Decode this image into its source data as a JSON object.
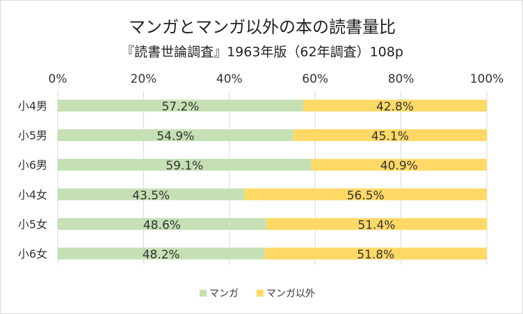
{
  "chart_data": {
    "type": "bar",
    "orientation": "horizontal",
    "stacked": "percent",
    "title": "マンガとマンガ以外の本の読書量比",
    "subtitle": "『読書世論調査』1963年版（62年調査）108p",
    "categories": [
      "小4男",
      "小5男",
      "小6男",
      "小4女",
      "小5女",
      "小6女"
    ],
    "series": [
      {
        "name": "マンガ",
        "color": "#c5e0b4",
        "values": [
          57.2,
          54.9,
          59.1,
          43.5,
          48.6,
          48.2
        ],
        "labels": [
          "57.2%",
          "54.9%",
          "59.1%",
          "43.5%",
          "48.6%",
          "48.2%"
        ]
      },
      {
        "name": "マンガ以外",
        "color": "#ffd966",
        "values": [
          42.8,
          45.1,
          40.9,
          56.5,
          51.4,
          51.8
        ],
        "labels": [
          "42.8%",
          "45.1%",
          "40.9%",
          "56.5%",
          "51.4%",
          "51.8%"
        ]
      }
    ],
    "xlim": [
      0,
      100
    ],
    "xticks": [
      0,
      20,
      40,
      60,
      80,
      100
    ],
    "xtick_labels": [
      "0%",
      "20%",
      "40%",
      "60%",
      "80%",
      "100%"
    ],
    "axis_position": "top",
    "grid": true,
    "legend_position": "bottom"
  }
}
